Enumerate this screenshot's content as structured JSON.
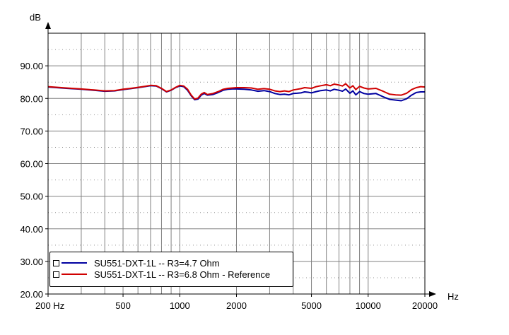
{
  "chart_data": {
    "type": "line",
    "y_unit_label": "dB",
    "x_unit_label": "Hz",
    "xscale": "log",
    "xlim": [
      200,
      20000
    ],
    "ylim": [
      20,
      100
    ],
    "grid": true,
    "legend_position": "bottom-left",
    "y_ticks": [
      "20.00",
      "30.00",
      "40.00",
      "50.00",
      "60.00",
      "70.00",
      "80.00",
      "90.00"
    ],
    "y_tick_values": [
      20,
      30,
      40,
      50,
      60,
      70,
      80,
      90
    ],
    "x_ticks": [
      "200 Hz",
      "500",
      "1000",
      "2000",
      "5000",
      "10000",
      "20000"
    ],
    "x_tick_values": [
      200,
      500,
      1000,
      2000,
      5000,
      10000,
      20000
    ],
    "series": [
      {
        "name": "SU551-DXT-1L -- R3=4.7 Ohm",
        "color": "#0000a0",
        "x": [
          200,
          250,
          300,
          350,
          400,
          450,
          500,
          550,
          600,
          650,
          700,
          750,
          800,
          850,
          900,
          950,
          1000,
          1050,
          1100,
          1150,
          1200,
          1250,
          1300,
          1350,
          1400,
          1500,
          1600,
          1700,
          1800,
          1900,
          2000,
          2200,
          2400,
          2600,
          2800,
          3000,
          3200,
          3400,
          3600,
          3800,
          4000,
          4200,
          4400,
          4600,
          4800,
          5000,
          5300,
          5600,
          6000,
          6300,
          6600,
          7000,
          7300,
          7600,
          8000,
          8300,
          8600,
          9000,
          9500,
          10000,
          11000,
          12000,
          13000,
          14000,
          15000,
          16000,
          17000,
          18000,
          19000,
          20000
        ],
        "values": [
          83.5,
          83.1,
          82.8,
          82.5,
          82.2,
          82.3,
          82.7,
          83.0,
          83.3,
          83.6,
          83.9,
          83.8,
          83.0,
          82.0,
          82.5,
          83.3,
          83.8,
          83.6,
          82.5,
          80.8,
          79.6,
          79.8,
          81.0,
          81.5,
          81.0,
          81.2,
          81.8,
          82.5,
          82.8,
          82.9,
          82.9,
          82.8,
          82.6,
          82.2,
          82.4,
          82.1,
          81.5,
          81.2,
          81.3,
          81.1,
          81.5,
          81.6,
          81.7,
          82.0,
          81.9,
          81.7,
          82.1,
          82.4,
          82.6,
          82.3,
          82.8,
          82.5,
          82.2,
          82.9,
          81.6,
          82.3,
          81.1,
          82.1,
          81.5,
          81.3,
          81.5,
          80.5,
          79.7,
          79.5,
          79.3,
          79.9,
          81.0,
          81.8,
          82.0,
          82.0
        ]
      },
      {
        "name": "SU551-DXT-1L -- R3=6.8 Ohm - Reference",
        "color": "#d00000",
        "x": [
          200,
          250,
          300,
          350,
          400,
          450,
          500,
          550,
          600,
          650,
          700,
          750,
          800,
          850,
          900,
          950,
          1000,
          1050,
          1100,
          1150,
          1200,
          1250,
          1300,
          1350,
          1400,
          1500,
          1600,
          1700,
          1800,
          1900,
          2000,
          2200,
          2400,
          2600,
          2800,
          3000,
          3200,
          3400,
          3600,
          3800,
          4000,
          4200,
          4400,
          4600,
          4800,
          5000,
          5300,
          5600,
          6000,
          6300,
          6600,
          7000,
          7300,
          7600,
          8000,
          8300,
          8600,
          9000,
          9500,
          10000,
          11000,
          12000,
          13000,
          14000,
          15000,
          16000,
          17000,
          18000,
          19000,
          20000
        ],
        "values": [
          83.6,
          83.2,
          82.9,
          82.6,
          82.3,
          82.4,
          82.8,
          83.1,
          83.4,
          83.7,
          84.0,
          83.9,
          83.1,
          82.1,
          82.6,
          83.4,
          84.0,
          83.8,
          82.8,
          81.0,
          79.8,
          80.1,
          81.3,
          81.8,
          81.2,
          81.5,
          82.1,
          82.8,
          83.1,
          83.2,
          83.3,
          83.3,
          83.2,
          82.8,
          83.0,
          82.8,
          82.3,
          82.1,
          82.3,
          82.1,
          82.6,
          82.8,
          83.0,
          83.3,
          83.2,
          83.1,
          83.6,
          83.9,
          84.2,
          83.9,
          84.4,
          84.1,
          83.8,
          84.5,
          83.2,
          83.9,
          82.7,
          83.7,
          83.2,
          82.9,
          83.1,
          82.2,
          81.3,
          81.1,
          81.0,
          81.6,
          82.7,
          83.3,
          83.6,
          83.5
        ]
      }
    ]
  },
  "legend": {
    "items": [
      {
        "label": "SU551-DXT-1L -- R3=4.7 Ohm",
        "color": "#0000a0"
      },
      {
        "label": "SU551-DXT-1L -- R3=6.8 Ohm - Reference",
        "color": "#d00000"
      }
    ]
  }
}
